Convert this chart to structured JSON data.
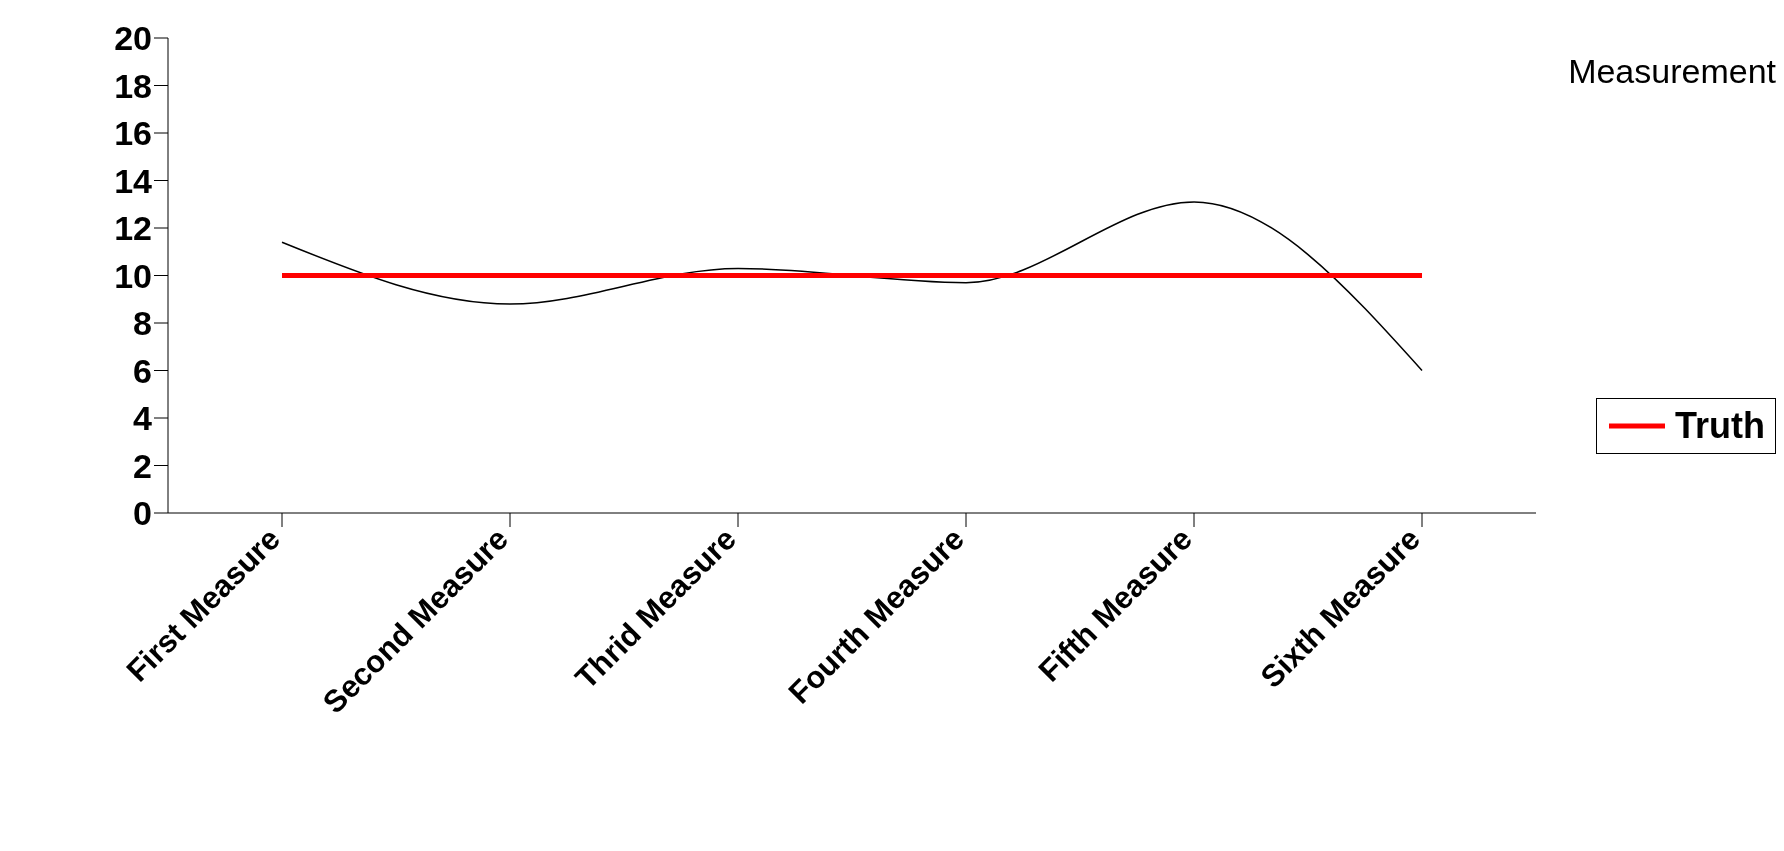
{
  "chart_data": {
    "type": "line",
    "title": "Measurement",
    "categories": [
      "First Measure",
      "Second Measure",
      "Thrid Measure",
      "Fourth Measure",
      "Fifth Measure",
      "Sixth Measure"
    ],
    "series": [
      {
        "color": "#000000",
        "values": [
          11.4,
          8.8,
          10.3,
          9.7,
          13.1,
          6.0
        ]
      },
      {
        "name": "Truth",
        "color": "#ff0000",
        "values": [
          10,
          10,
          10,
          10,
          10,
          10
        ]
      }
    ],
    "ylim": [
      0,
      20
    ],
    "yticks": [
      0,
      2,
      4,
      6,
      8,
      10,
      12,
      14,
      16,
      18,
      20
    ],
    "grid": false,
    "legend": "right",
    "marker": "none"
  }
}
